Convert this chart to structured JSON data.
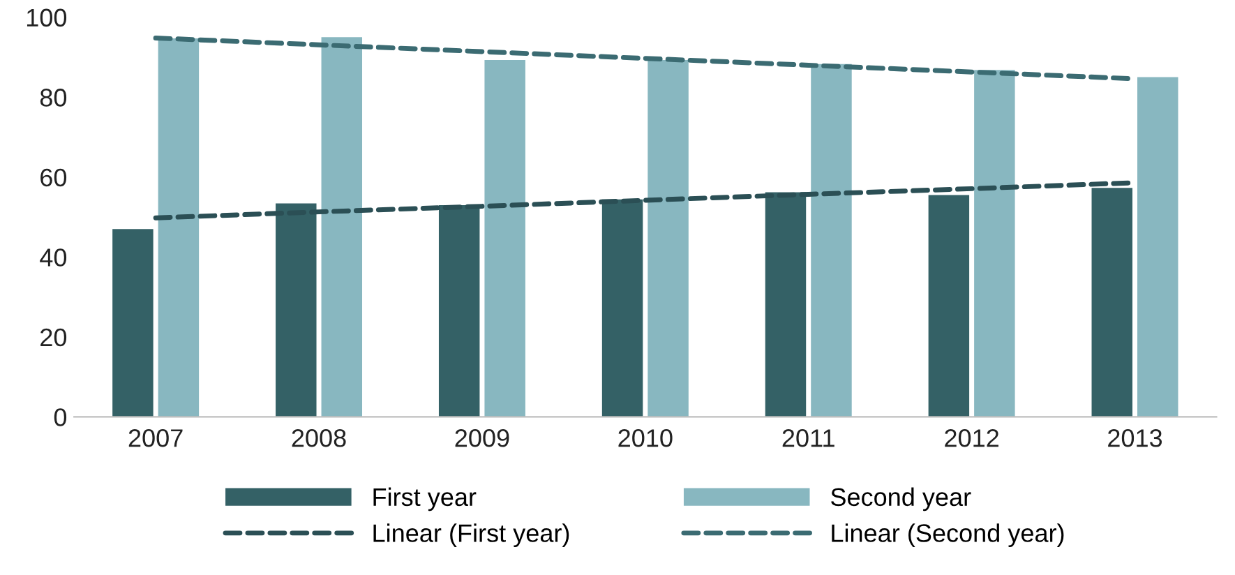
{
  "chart_data": {
    "type": "bar",
    "categories": [
      "2007",
      "2008",
      "2009",
      "2010",
      "2011",
      "2012",
      "2013"
    ],
    "series": [
      {
        "name": "First year",
        "color": "#346166",
        "values": [
          47,
          53.4,
          53,
          54.4,
          56.2,
          55.5,
          57.3
        ]
      },
      {
        "name": "Second year",
        "color": "#88b7c0",
        "values": [
          94.7,
          95,
          89.3,
          89.3,
          88.3,
          86.8,
          85
        ]
      },
      {
        "name": "Linear (First year)",
        "type": "line",
        "line_style": "dashed",
        "color": "#2b4f55",
        "values": [
          49.8,
          51.3,
          52.7,
          54.2,
          55.7,
          57.1,
          58.6
        ]
      },
      {
        "name": "Linear (Second year)",
        "type": "line",
        "line_style": "dashed",
        "color": "#3b6b72",
        "values": [
          94.8,
          93.1,
          91.4,
          89.7,
          88.0,
          86.3,
          84.6
        ]
      }
    ],
    "ylim": [
      0,
      100
    ],
    "yticks": [
      0,
      20,
      40,
      60,
      80,
      100
    ],
    "grid": false,
    "legend": "bottom"
  }
}
